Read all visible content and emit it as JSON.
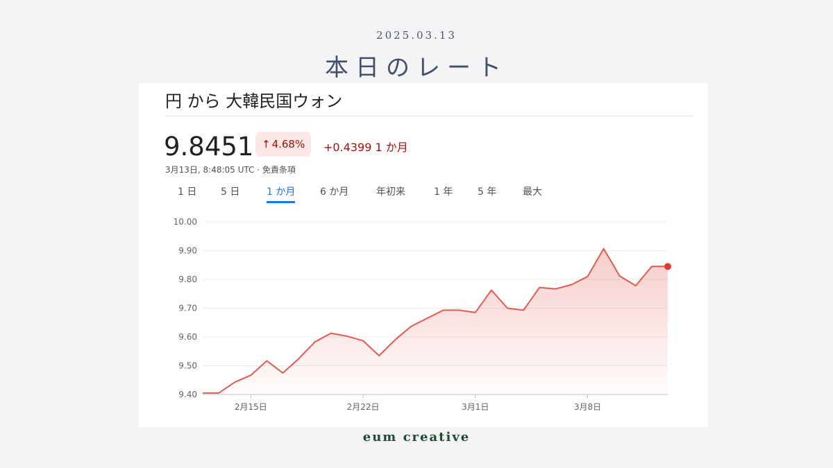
{
  "header": {
    "date": "2025.03.13",
    "title": "本日のレート"
  },
  "quote": {
    "pair_title": "円 から 大韓民国ウォン",
    "rate": "9.8451",
    "percent_change": "4.68%",
    "absolute_change": "+0.4399 1 か月",
    "timestamp": "3月13日, 8:48:05 UTC · 免責条項",
    "arrow_icon": "up-arrow-icon"
  },
  "tabs": [
    {
      "label": "1 日",
      "active": false
    },
    {
      "label": "5 日",
      "active": false
    },
    {
      "label": "1 か月",
      "active": true
    },
    {
      "label": "6 か月",
      "active": false
    },
    {
      "label": "年初来",
      "active": false
    },
    {
      "label": "1 年",
      "active": false
    },
    {
      "label": "5 年",
      "active": false
    },
    {
      "label": "最大",
      "active": false
    }
  ],
  "chart_data": {
    "type": "area",
    "x": [
      "2025-02-12",
      "2025-02-13",
      "2025-02-14",
      "2025-02-15",
      "2025-02-16",
      "2025-02-17",
      "2025-02-18",
      "2025-02-19",
      "2025-02-20",
      "2025-02-21",
      "2025-02-22",
      "2025-02-23",
      "2025-02-24",
      "2025-02-25",
      "2025-02-26",
      "2025-02-27",
      "2025-02-28",
      "2025-03-01",
      "2025-03-02",
      "2025-03-03",
      "2025-03-04",
      "2025-03-05",
      "2025-03-06",
      "2025-03-07",
      "2025-03-08",
      "2025-03-09",
      "2025-03-10",
      "2025-03-11",
      "2025-03-12",
      "2025-03-13"
    ],
    "values": [
      9.405,
      9.405,
      9.443,
      9.467,
      9.517,
      9.475,
      9.525,
      9.583,
      9.613,
      9.603,
      9.587,
      9.535,
      9.59,
      9.637,
      9.665,
      9.693,
      9.693,
      9.685,
      9.763,
      9.7,
      9.693,
      9.772,
      9.767,
      9.782,
      9.81,
      9.907,
      9.812,
      9.778,
      9.845,
      9.845
    ],
    "ylim": [
      9.4,
      10.0
    ],
    "yticks": [
      "10.00",
      "9.90",
      "9.80",
      "9.70",
      "9.60",
      "9.50",
      "9.40"
    ],
    "xticks": [
      {
        "date": "2025-02-15",
        "label": "2月15日"
      },
      {
        "date": "2025-02-22",
        "label": "2月22日"
      },
      {
        "date": "2025-03-01",
        "label": "3月1日"
      },
      {
        "date": "2025-03-08",
        "label": "3月8日"
      }
    ],
    "grid": true,
    "line_color": "#e25a4f",
    "end_marker_color": "#e53935"
  },
  "brand": "eum creative",
  "colors": {
    "accent_blue": "#1a73e8",
    "negative_red": "#a50e0e",
    "badge_bg": "#fce8e6"
  }
}
